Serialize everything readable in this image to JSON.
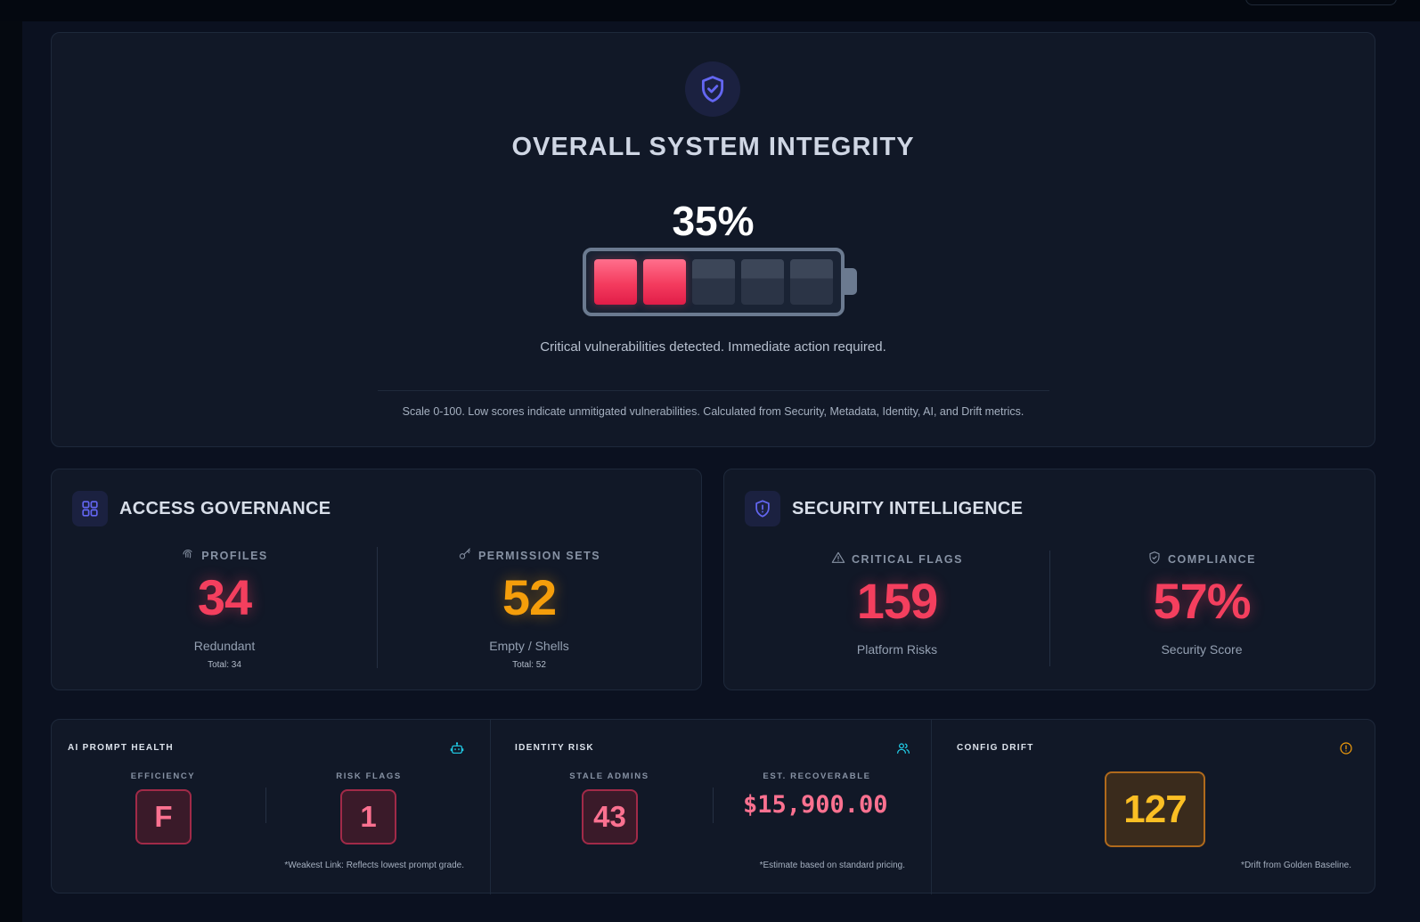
{
  "hero": {
    "title": "OVERALL SYSTEM INTEGRITY",
    "percent_text": "35%",
    "integrity_fraction": 0.35,
    "battery_cells_total": 5,
    "battery_cells_filled": 2,
    "message": "Critical vulnerabilities detected. Immediate action required.",
    "scale_note": "Scale 0-100. Low scores indicate unmitigated vulnerabilities. Calculated from Security, Metadata, Identity, AI, and Drift metrics."
  },
  "access": {
    "title": "ACCESS GOVERNANCE",
    "profiles": {
      "label": "PROFILES",
      "value": "34",
      "sub": "Redundant",
      "total": "Total: 34"
    },
    "permission_sets": {
      "label": "PERMISSION SETS",
      "value": "52",
      "sub": "Empty / Shells",
      "total": "Total: 52"
    }
  },
  "security": {
    "title": "SECURITY INTELLIGENCE",
    "critical_flags": {
      "label": "CRITICAL FLAGS",
      "value": "159",
      "sub": "Platform Risks"
    },
    "compliance": {
      "label": "COMPLIANCE",
      "value": "57%",
      "sub": "Security Score"
    }
  },
  "ai_prompt": {
    "title": "AI PROMPT HEALTH",
    "efficiency": {
      "label": "EFFICIENCY",
      "value": "F"
    },
    "risk_flags": {
      "label": "RISK FLAGS",
      "value": "1"
    },
    "footnote": "*Weakest Link: Reflects lowest prompt grade."
  },
  "identity": {
    "title": "IDENTITY RISK",
    "stale_admins": {
      "label": "STALE ADMINS",
      "value": "43"
    },
    "recoverable": {
      "label": "EST. RECOVERABLE",
      "value": "$15,900.00"
    },
    "footnote": "*Estimate based on standard pricing."
  },
  "drift": {
    "title": "CONFIG DRIFT",
    "value": "127",
    "footnote": "*Drift from Golden Baseline."
  },
  "colors": {
    "critical": "#f43f5e",
    "warning": "#f59e0b",
    "accent": "#6366f1",
    "teal": "#22d3ee"
  },
  "icons": {
    "hero": "shield-check-icon",
    "access": "grid-icon",
    "security": "shield-alert-icon",
    "profiles": "fingerprint-icon",
    "permission_sets": "key-icon",
    "critical_flags": "warning-triangle-icon",
    "compliance": "shield-check-icon",
    "ai": "robot-icon",
    "identity": "users-icon",
    "drift": "alert-circle-icon"
  }
}
